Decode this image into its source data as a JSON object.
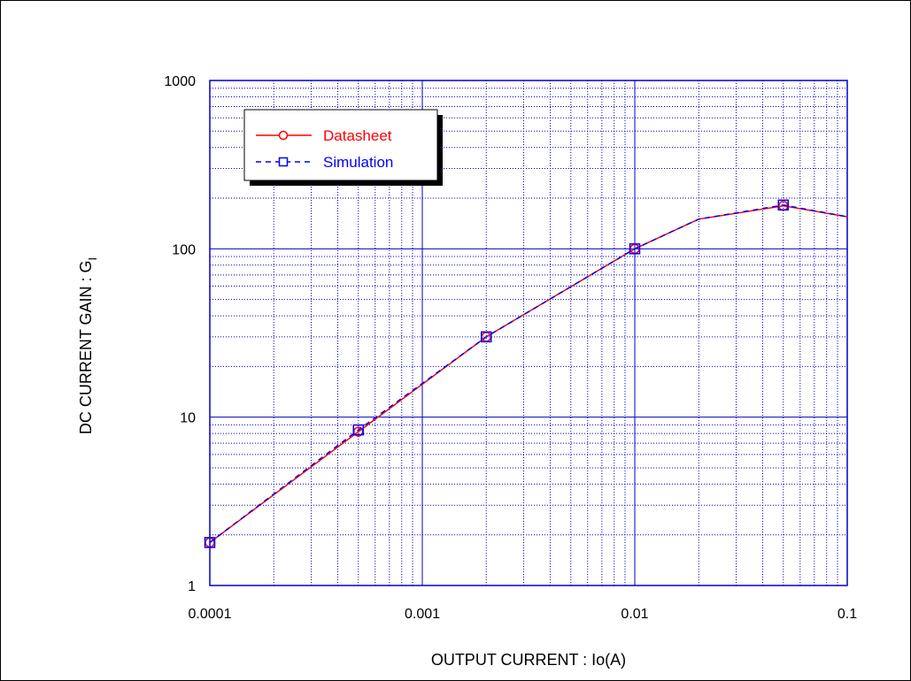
{
  "chart_data": {
    "type": "line",
    "xscale": "log",
    "yscale": "log",
    "xlim": [
      0.0001,
      0.1
    ],
    "ylim": [
      1,
      1000
    ],
    "xticks": [
      "0.0001",
      "0.001",
      "0.01",
      "0.1"
    ],
    "yticks": [
      "1",
      "10",
      "100",
      "1000"
    ],
    "xlabel": "OUTPUT CURRENT : Io(A)",
    "ylabel": "DC  CURRENT GAIN : G",
    "ylabel_subscript": "I",
    "grid": true,
    "legend_position": "top-left",
    "series": [
      {
        "name": "Datasheet",
        "color": "#ff0000",
        "line": "solid",
        "marker": "circle",
        "x": [
          0.0001,
          0.0005,
          0.002,
          0.01,
          0.02,
          0.05,
          0.1
        ],
        "y": [
          1.8,
          8.2,
          30,
          100,
          150,
          180,
          155
        ],
        "marked": [
          true,
          true,
          true,
          true,
          false,
          true,
          false
        ]
      },
      {
        "name": "Simulation",
        "color": "#0000ff",
        "line": "dashed",
        "marker": "square",
        "x": [
          0.0001,
          0.0005,
          0.002,
          0.01,
          0.02,
          0.05,
          0.1
        ],
        "y": [
          1.8,
          8.4,
          30,
          100,
          150,
          182,
          155
        ],
        "marked": [
          true,
          true,
          true,
          true,
          false,
          true,
          false
        ]
      }
    ]
  }
}
